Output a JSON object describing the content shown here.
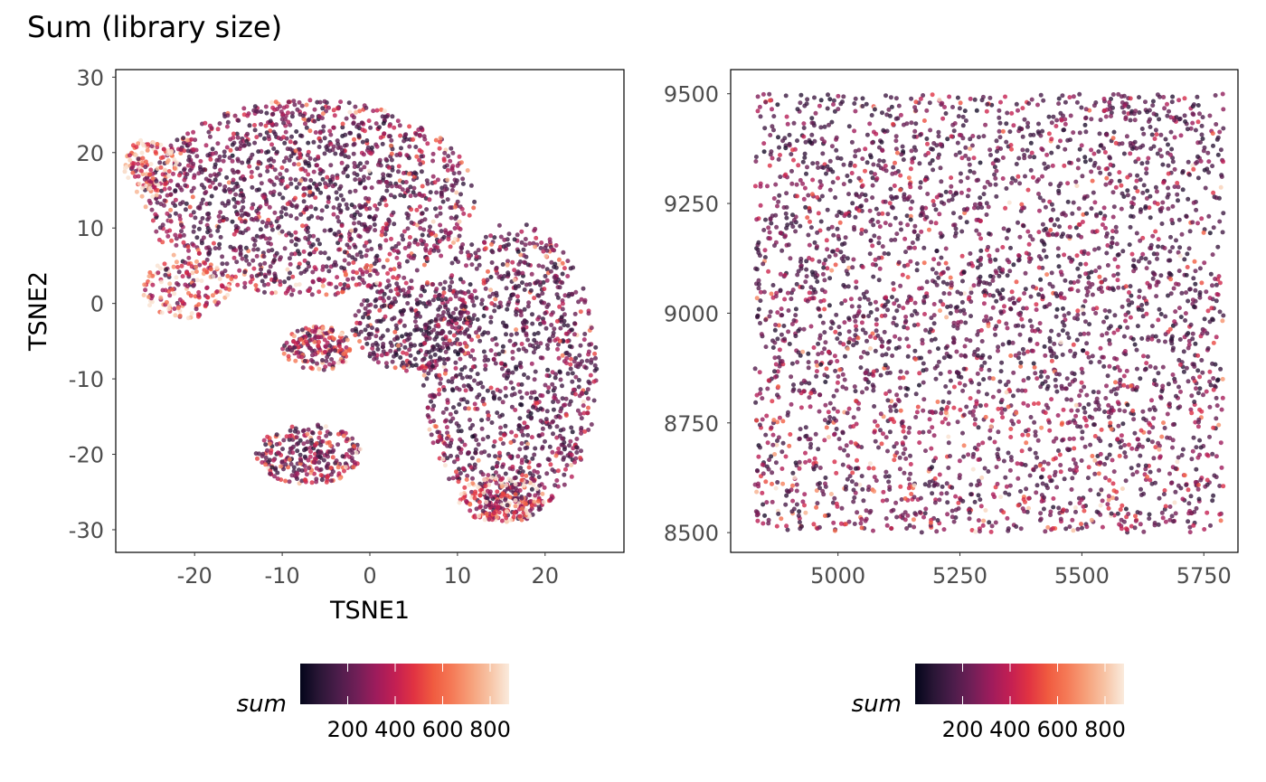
{
  "figure": {
    "title": "Sum (library size)"
  },
  "colors": {
    "colormap": "rocket",
    "stops": [
      "#03051a",
      "#2a1636",
      "#4c1d4b",
      "#711f57",
      "#9e1c5c",
      "#c31f53",
      "#e13342",
      "#f05b40",
      "#f57a57",
      "#f6a07a",
      "#f7c4a5",
      "#faebdd"
    ],
    "panel_border": "#000000",
    "tick_label": "#4d4d4d"
  },
  "chart_data": [
    {
      "type": "scatter",
      "name": "tsne",
      "xlabel": "TSNE1",
      "ylabel": "TSNE2",
      "xlim": [
        -29,
        29
      ],
      "ylim": [
        -33,
        31
      ],
      "xticks": [
        -20,
        -10,
        0,
        10,
        20
      ],
      "xtick_labels": [
        "-20",
        "-10",
        "0",
        "10",
        "20"
      ],
      "yticks": [
        -30,
        -20,
        -10,
        0,
        10,
        20,
        30
      ],
      "ytick_labels": [
        "-30",
        "-20",
        "-10",
        "0",
        "10",
        "20",
        "30"
      ],
      "grid": false,
      "color_by": "sum",
      "clusters": [
        {
          "cx": -7,
          "cy": 14,
          "rx": 19,
          "ry": 13,
          "n": 1500,
          "sum_mean": 190
        },
        {
          "cx": 16,
          "cy": -9,
          "rx": 10,
          "ry": 20,
          "n": 1100,
          "sum_mean": 170
        },
        {
          "cx": 5,
          "cy": -3,
          "rx": 7,
          "ry": 6,
          "n": 320,
          "sum_mean": 150
        },
        {
          "cx": -6,
          "cy": -6,
          "rx": 4,
          "ry": 3,
          "n": 180,
          "sum_mean": 300
        },
        {
          "cx": -7,
          "cy": -20,
          "rx": 6,
          "ry": 4,
          "n": 260,
          "sum_mean": 220
        },
        {
          "cx": -21,
          "cy": 2,
          "rx": 5,
          "ry": 4,
          "n": 150,
          "sum_mean": 360
        },
        {
          "cx": 15,
          "cy": -26,
          "rx": 5,
          "ry": 3,
          "n": 200,
          "sum_mean": 420
        },
        {
          "cx": -25,
          "cy": 18,
          "rx": 3,
          "ry": 4,
          "n": 120,
          "sum_mean": 520
        }
      ]
    },
    {
      "type": "scatter",
      "name": "spatial",
      "xlabel": "",
      "ylabel": "",
      "xlim": [
        4780,
        5820
      ],
      "ylim": [
        8455,
        9555
      ],
      "xticks": [
        5000,
        5250,
        5500,
        5750
      ],
      "xtick_labels": [
        "5000",
        "5250",
        "5500",
        "5750"
      ],
      "yticks": [
        8500,
        8750,
        9000,
        9250,
        9500
      ],
      "ytick_labels": [
        "8500",
        "8750",
        "9000",
        "9250",
        "9500"
      ],
      "grid": false,
      "color_by": "sum",
      "extent": {
        "x": [
          4830,
          5790
        ],
        "y": [
          8500,
          9500
        ]
      },
      "n": 3400
    }
  ],
  "legends": [
    {
      "title": "sum",
      "labels": [
        "200",
        "400",
        "600",
        "800"
      ],
      "values": [
        200,
        400,
        600,
        800
      ],
      "range": [
        0,
        880
      ]
    },
    {
      "title": "sum",
      "labels": [
        "200",
        "400",
        "600",
        "800"
      ],
      "values": [
        200,
        400,
        600,
        800
      ],
      "range": [
        0,
        880
      ]
    }
  ]
}
